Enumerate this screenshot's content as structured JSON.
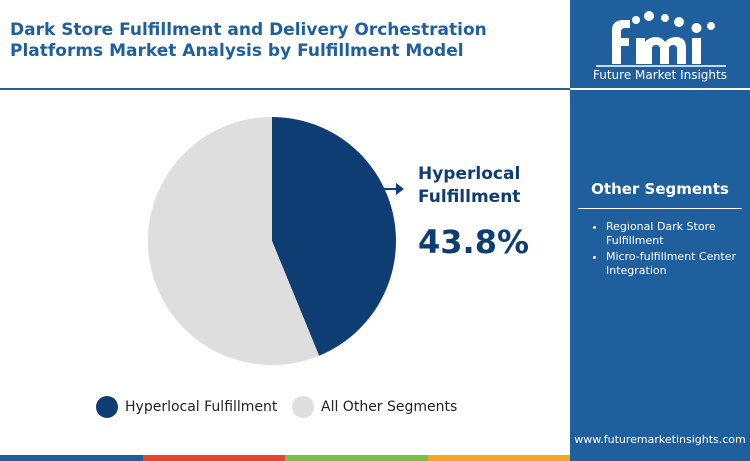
{
  "title": "Dark Store Fulfillment and Delivery Orchestration Platforms Market Analysis by Fulfillment Model",
  "brand": {
    "tagline": "Future Market Insights",
    "website": "www.futuremarketinsights.com",
    "logo_icon": "fmi-logo-icon"
  },
  "colors": {
    "primary": "#0d3d73",
    "other": "#dedede",
    "accent_blue": "#1f5f9e",
    "bar_colors": [
      "#1f5f9e",
      "#e8452c",
      "#7ac143",
      "#f4a81d"
    ]
  },
  "callout": {
    "label": "Hyperlocal Fulfillment",
    "value": "43.8%"
  },
  "sidebar": {
    "title": "Other Segments",
    "items": [
      "Regional Dark Store Fulfillment",
      "Micro-fulfillment Center Integration"
    ]
  },
  "chart_data": {
    "type": "pie",
    "title": "Dark Store Fulfillment and Delivery Orchestration Platforms Market Analysis by Fulfillment Model",
    "categories": [
      "Hyperlocal Fulfillment",
      "All Other Segments"
    ],
    "values": [
      43.8,
      56.2
    ],
    "colors": [
      "#0d3d73",
      "#dedede"
    ],
    "start_angle_deg": 0,
    "direction": "clockwise",
    "legend": {
      "position": "bottom",
      "entries": [
        "Hyperlocal Fulfillment",
        "All Other Segments"
      ]
    }
  }
}
